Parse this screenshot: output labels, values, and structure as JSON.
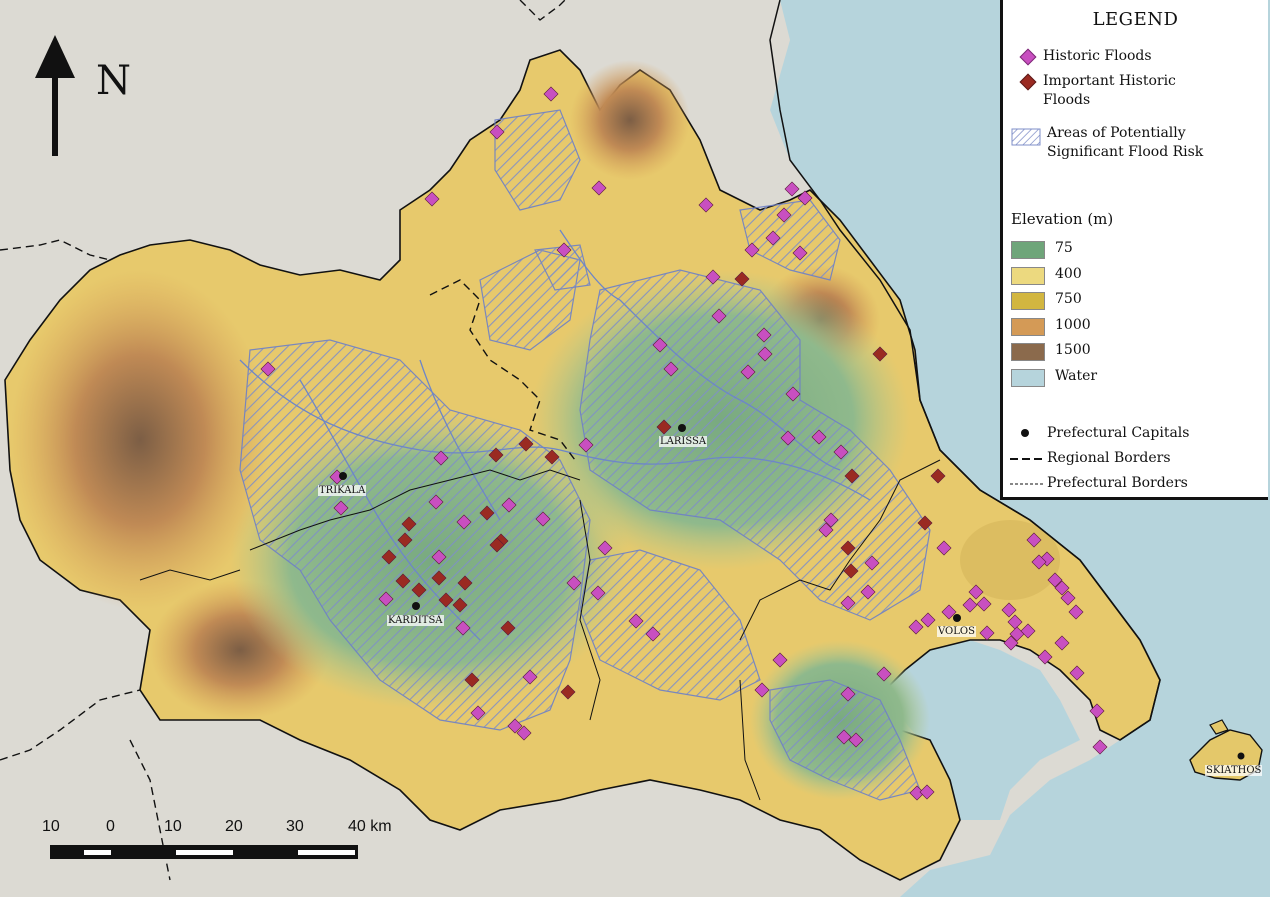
{
  "legend": {
    "title": "LEGEND",
    "historic_floods": "Historic Floods",
    "important_floods_line1": "Important Historic",
    "important_floods_line2": "Floods",
    "flood_risk_line1": "Areas of Potentially",
    "flood_risk_line2": "Significant Flood Risk",
    "elevation_title": "Elevation (m)",
    "elevation_classes": [
      {
        "label": "75",
        "color": "#6fa57a"
      },
      {
        "label": "400",
        "color": "#ecd97f"
      },
      {
        "label": "750",
        "color": "#d2b640"
      },
      {
        "label": "1000",
        "color": "#d49a56"
      },
      {
        "label": "1500",
        "color": "#8b6a4c"
      },
      {
        "label": "Water",
        "color": "#b6d4dc"
      }
    ],
    "prefectural_capitals": "Prefectural Capitals",
    "regional_borders": "Regional Borders",
    "prefectural_borders": "Prefectural Borders"
  },
  "north_arrow": {
    "label": "N"
  },
  "scale_bar": {
    "labels": [
      "10",
      "0",
      "10",
      "20",
      "30",
      "40 km"
    ]
  },
  "cities": {
    "trikala": "TRIKALA",
    "larissa": "LARISSA",
    "karditsa": "KARDITSA",
    "volos": "VOLOS",
    "skiathos": "SKIATHOS"
  },
  "colors": {
    "historic_flood": "#c84fc0",
    "important_flood": "#9a2a22",
    "hatch": "#7f8fc8",
    "water": "#b6d4dc",
    "background_land": "#dcdad3"
  }
}
